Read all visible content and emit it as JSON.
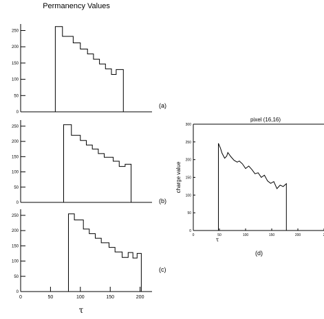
{
  "figure_title": "Permanency Values",
  "chart_data": [
    {
      "type": "line",
      "panel_label": "(a)",
      "xlim": [
        0,
        220
      ],
      "ylim": [
        0,
        270
      ],
      "ytick_labels": [
        "0",
        "50",
        "100",
        "150",
        "200",
        "250"
      ],
      "xtick_labels": [],
      "xlabel": "",
      "ylabel": "",
      "grid": false,
      "x": [
        0,
        58,
        58,
        70,
        70,
        88,
        88,
        100,
        100,
        112,
        112,
        122,
        122,
        132,
        132,
        142,
        142,
        152,
        152,
        160,
        160,
        172,
        172,
        220
      ],
      "y": [
        0,
        0,
        262,
        262,
        232,
        232,
        212,
        212,
        193,
        193,
        178,
        178,
        162,
        162,
        147,
        147,
        132,
        132,
        115,
        115,
        130,
        130,
        0,
        0
      ]
    },
    {
      "type": "line",
      "panel_label": "(b)",
      "xlim": [
        0,
        220
      ],
      "ylim": [
        0,
        270
      ],
      "ytick_labels": [
        "0",
        "50",
        "100",
        "150",
        "200",
        "250"
      ],
      "xtick_labels": [],
      "xlabel": "",
      "ylabel": "",
      "grid": false,
      "x": [
        0,
        72,
        72,
        85,
        85,
        100,
        100,
        110,
        110,
        120,
        120,
        130,
        130,
        140,
        140,
        155,
        155,
        165,
        165,
        175,
        175,
        185,
        185,
        220
      ],
      "y": [
        0,
        0,
        255,
        255,
        220,
        220,
        203,
        203,
        188,
        188,
        175,
        175,
        160,
        160,
        148,
        148,
        135,
        135,
        118,
        118,
        125,
        125,
        0,
        0
      ]
    },
    {
      "type": "line",
      "panel_label": "(c)",
      "xlim": [
        0,
        220
      ],
      "ylim": [
        0,
        270
      ],
      "ytick_labels": [
        "0",
        "50",
        "100",
        "150",
        "200",
        "250"
      ],
      "xtick_labels": [
        "0",
        "50",
        "100",
        "150",
        "200"
      ],
      "xlabel": "τ",
      "ylabel": "",
      "grid": false,
      "x": [
        0,
        80,
        80,
        90,
        90,
        105,
        105,
        115,
        115,
        125,
        125,
        135,
        135,
        148,
        148,
        158,
        158,
        170,
        170,
        180,
        180,
        188,
        188,
        195,
        195,
        202,
        202,
        220
      ],
      "y": [
        0,
        0,
        255,
        255,
        235,
        235,
        205,
        205,
        190,
        190,
        175,
        175,
        160,
        160,
        145,
        145,
        130,
        130,
        112,
        112,
        128,
        128,
        110,
        110,
        125,
        125,
        0,
        0
      ]
    },
    {
      "type": "line",
      "panel_label": "(d)",
      "title": "pixel (16,16)",
      "xlim": [
        0,
        250
      ],
      "ylim": [
        0,
        300
      ],
      "ytick_labels": [
        "0",
        "50",
        "100",
        "150",
        "200",
        "250",
        "300"
      ],
      "xtick_labels": [
        "0",
        "50",
        "100",
        "150",
        "200",
        "2"
      ],
      "xlabel": "τ",
      "ylabel": "charge value",
      "grid": false,
      "x": [
        0,
        48,
        48,
        52,
        55,
        60,
        64,
        66,
        72,
        78,
        84,
        88,
        94,
        100,
        106,
        112,
        118,
        124,
        130,
        136,
        142,
        148,
        154,
        160,
        166,
        172,
        178,
        178,
        250
      ],
      "y": [
        0,
        0,
        246,
        232,
        218,
        204,
        210,
        220,
        208,
        198,
        193,
        196,
        188,
        175,
        182,
        172,
        160,
        163,
        150,
        156,
        140,
        133,
        138,
        118,
        128,
        124,
        132,
        0,
        0
      ]
    }
  ]
}
